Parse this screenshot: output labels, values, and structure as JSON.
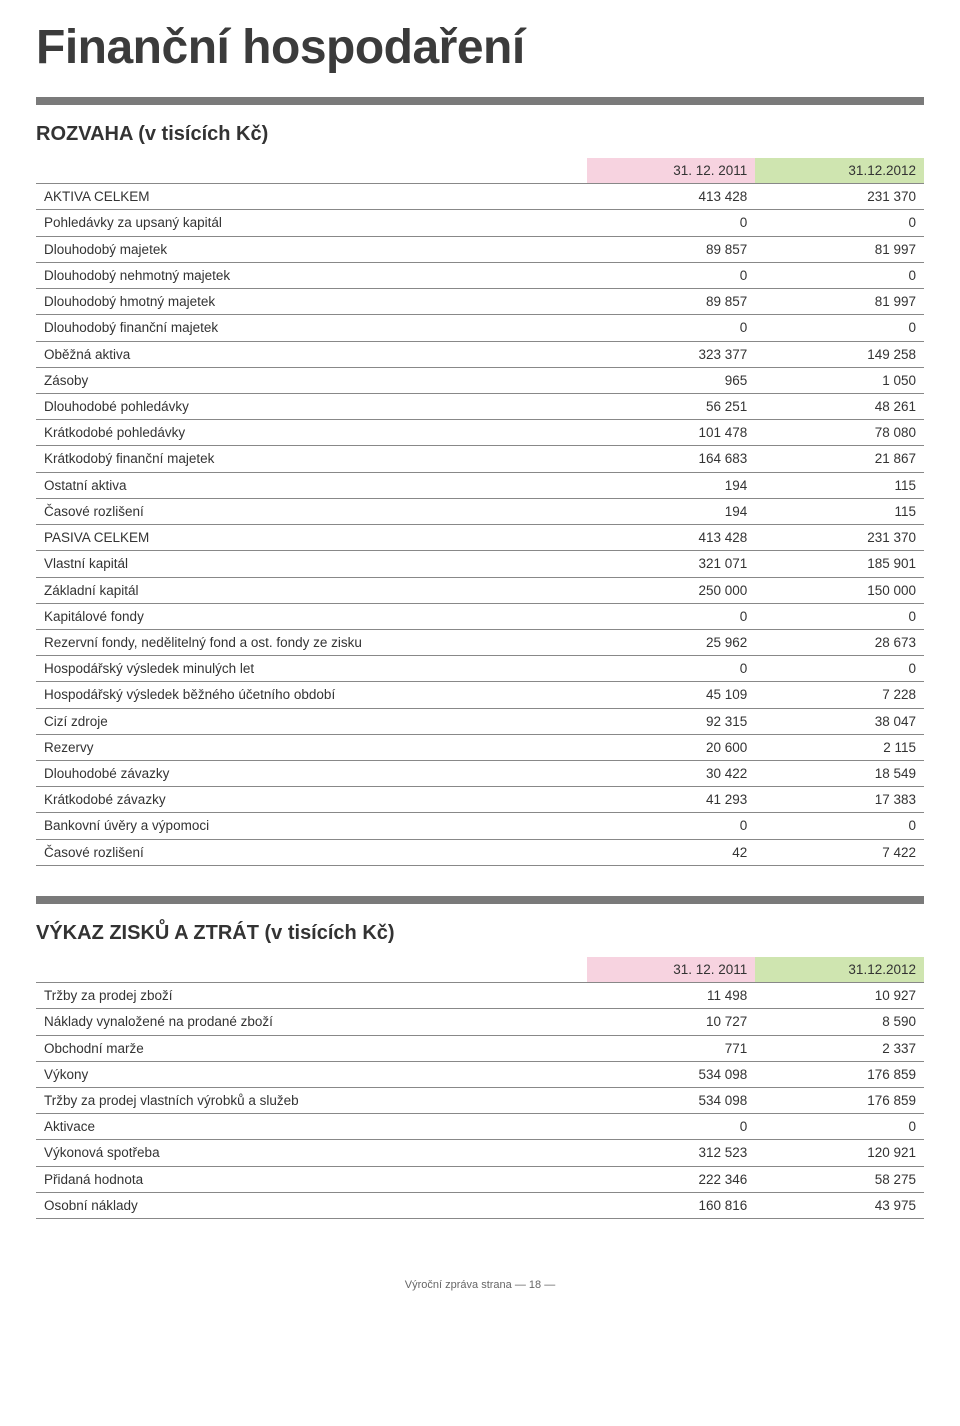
{
  "page_title": "Finanční hospodaření",
  "rozvaha": {
    "title": "ROZVAHA (v tisících Kč)",
    "header_colors": {
      "col1": "#f7d3e0",
      "col2": "#cfe5b0"
    },
    "columns": [
      "",
      "31. 12. 2011",
      "31.12.2012"
    ],
    "rows": [
      [
        "AKTIVA CELKEM",
        "413 428",
        "231 370"
      ],
      [
        "Pohledávky za upsaný kapitál",
        "0",
        "0"
      ],
      [
        "Dlouhodobý majetek",
        "89 857",
        "81 997"
      ],
      [
        "Dlouhodobý nehmotný majetek",
        "0",
        "0"
      ],
      [
        "Dlouhodobý hmotný majetek",
        "89 857",
        "81 997"
      ],
      [
        "Dlouhodobý finanční majetek",
        "0",
        "0"
      ],
      [
        "Oběžná aktiva",
        "323 377",
        "149 258"
      ],
      [
        "Zásoby",
        "965",
        "1 050"
      ],
      [
        "Dlouhodobé pohledávky",
        "56 251",
        "48 261"
      ],
      [
        "Krátkodobé pohledávky",
        "101 478",
        "78 080"
      ],
      [
        "Krátkodobý finanční majetek",
        "164 683",
        "21 867"
      ],
      [
        "Ostatní aktiva",
        "194",
        "115"
      ],
      [
        "Časové rozlišení",
        "194",
        "115"
      ],
      [
        "PASIVA CELKEM",
        "413 428",
        "231 370"
      ],
      [
        "Vlastní kapitál",
        "321 071",
        "185 901"
      ],
      [
        "Základní kapitál",
        "250 000",
        "150 000"
      ],
      [
        "Kapitálové fondy",
        "0",
        "0"
      ],
      [
        "Rezervní fondy, nedělitelný fond a ost. fondy ze zisku",
        "25 962",
        "28 673"
      ],
      [
        "Hospodářský výsledek minulých let",
        "0",
        "0"
      ],
      [
        "Hospodářský výsledek běžného účetního období",
        "45 109",
        "7 228"
      ],
      [
        "Cizí zdroje",
        "92 315",
        "38 047"
      ],
      [
        "Rezervy",
        "20 600",
        "2 115"
      ],
      [
        "Dlouhodobé závazky",
        "30 422",
        "18 549"
      ],
      [
        "Krátkodobé závazky",
        "41 293",
        "17 383"
      ],
      [
        "Bankovní úvěry a výpomoci",
        "0",
        "0"
      ],
      [
        "Časové rozlišení",
        "42",
        "7 422"
      ]
    ]
  },
  "vykaz": {
    "title": "VÝKAZ ZISKŮ A ZTRÁT (v tisících Kč)",
    "header_colors": {
      "col1": "#f7d3e0",
      "col2": "#cfe5b0"
    },
    "columns": [
      "",
      "31. 12. 2011",
      "31.12.2012"
    ],
    "rows": [
      [
        "Tržby za prodej zboží",
        "11 498",
        "10 927"
      ],
      [
        "Náklady vynaložené na prodané zboží",
        "10 727",
        "8 590"
      ],
      [
        "Obchodní marže",
        "771",
        "2 337"
      ],
      [
        "Výkony",
        "534 098",
        "176 859"
      ],
      [
        "Tržby za prodej vlastních výrobků a služeb",
        "534 098",
        "176 859"
      ],
      [
        "Aktivace",
        "0",
        "0"
      ],
      [
        "Výkonová spotřeba",
        "312 523",
        "120 921"
      ],
      [
        "Přidaná hodnota",
        "222 346",
        "58 275"
      ],
      [
        "Osobní náklady",
        "160 816",
        "43 975"
      ]
    ]
  },
  "footer": {
    "label": "Výroční zpráva strana",
    "page_number": "18"
  },
  "style": {
    "rule_color": "#7a7a7a",
    "row_border_color": "#888888",
    "text_color": "#333333",
    "title_color": "#3b3b3b",
    "title_fontsize_pt": 36,
    "section_title_fontsize_pt": 15,
    "table_fontsize_pt": 10
  }
}
